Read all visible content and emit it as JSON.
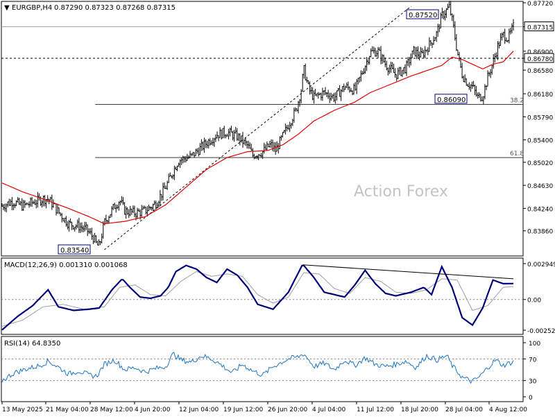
{
  "header": {
    "arrow": "▼",
    "symbol": "EURGBP,H4",
    "ohlc": "0.87290 0.87323 0.87268 0.87315"
  },
  "colors": {
    "candle": "#000000",
    "ma": "#e00000",
    "macd": "#00007a",
    "signal": "#a0a0a0",
    "rsi": "#1c75c8",
    "grid": "#808080",
    "watermark": "#c4c4c4"
  },
  "watermark": "Action Forex",
  "chart_data": [
    {
      "type": "candlestick",
      "title": "EURGBP,H4",
      "ylim": [
        0.8354,
        0.8772
      ],
      "y_ticks": [
        "0.87720",
        "0.87315",
        "0.86900",
        "0.86780",
        "0.86580",
        "0.86180",
        "0.85790",
        "0.85400",
        "0.85020",
        "0.84630",
        "0.84240",
        "0.83860"
      ],
      "current_price": "0.87315",
      "reference_level": "0.86780",
      "price_labels": [
        {
          "text": "0.87520",
          "x": "28 Jul 04:00",
          "y": 0.8752
        },
        {
          "text": "0.86090",
          "x": "28 Jul 04:00",
          "y": 0.8609
        },
        {
          "text": "0.83540",
          "x": "28 May 12:00",
          "y": 0.8354
        }
      ],
      "fib_levels": [
        {
          "label": "38.2",
          "value": 0.86
        },
        {
          "label": "61.8",
          "value": 0.851
        }
      ],
      "trendline": {
        "from": [
          0.2,
          0.8354
        ],
        "to": [
          0.8,
          0.8766
        ]
      },
      "close_path": [
        [
          0.0,
          0.8428
        ],
        [
          0.02,
          0.8436
        ],
        [
          0.04,
          0.8428
        ],
        [
          0.06,
          0.8434
        ],
        [
          0.08,
          0.844
        ],
        [
          0.09,
          0.844
        ],
        [
          0.1,
          0.843
        ],
        [
          0.11,
          0.8418
        ],
        [
          0.13,
          0.8398
        ],
        [
          0.15,
          0.8394
        ],
        [
          0.165,
          0.8388
        ],
        [
          0.178,
          0.8375
        ],
        [
          0.185,
          0.8362
        ],
        [
          0.19,
          0.836
        ],
        [
          0.2,
          0.84
        ],
        [
          0.22,
          0.8428
        ],
        [
          0.23,
          0.8438
        ],
        [
          0.24,
          0.842
        ],
        [
          0.26,
          0.8416
        ],
        [
          0.28,
          0.842
        ],
        [
          0.3,
          0.8432
        ],
        [
          0.32,
          0.846
        ],
        [
          0.335,
          0.8488
        ],
        [
          0.345,
          0.8505
        ],
        [
          0.355,
          0.8508
        ],
        [
          0.37,
          0.8512
        ],
        [
          0.4,
          0.8535
        ],
        [
          0.42,
          0.8549
        ],
        [
          0.44,
          0.8553
        ],
        [
          0.46,
          0.8546
        ],
        [
          0.48,
          0.853
        ],
        [
          0.49,
          0.8514
        ],
        [
          0.51,
          0.852
        ],
        [
          0.525,
          0.8532
        ],
        [
          0.535,
          0.8522
        ],
        [
          0.55,
          0.8548
        ],
        [
          0.565,
          0.8574
        ],
        [
          0.575,
          0.859
        ],
        [
          0.585,
          0.8625
        ],
        [
          0.59,
          0.866
        ],
        [
          0.6,
          0.8625
        ],
        [
          0.61,
          0.8612
        ],
        [
          0.63,
          0.862
        ],
        [
          0.65,
          0.8612
        ],
        [
          0.67,
          0.863
        ],
        [
          0.69,
          0.8624
        ],
        [
          0.7,
          0.8645
        ],
        [
          0.71,
          0.8666
        ],
        [
          0.72,
          0.8688
        ],
        [
          0.735,
          0.869
        ],
        [
          0.75,
          0.8668
        ],
        [
          0.77,
          0.865
        ],
        [
          0.79,
          0.8662
        ],
        [
          0.805,
          0.869
        ],
        [
          0.82,
          0.8682
        ],
        [
          0.835,
          0.87
        ],
        [
          0.85,
          0.872
        ],
        [
          0.86,
          0.875
        ],
        [
          0.875,
          0.8765
        ],
        [
          0.883,
          0.873
        ],
        [
          0.89,
          0.869
        ],
        [
          0.9,
          0.865
        ],
        [
          0.91,
          0.8636
        ],
        [
          0.92,
          0.863
        ],
        [
          0.93,
          0.8612
        ],
        [
          0.94,
          0.8614
        ],
        [
          0.95,
          0.8646
        ],
        [
          0.96,
          0.867
        ],
        [
          0.97,
          0.87
        ],
        [
          0.98,
          0.8718
        ],
        [
          0.99,
          0.8712
        ],
        [
          1.0,
          0.87315
        ]
      ],
      "ma_path": [
        [
          0.0,
          0.8467
        ],
        [
          0.04,
          0.8452
        ],
        [
          0.08,
          0.844
        ],
        [
          0.13,
          0.8424
        ],
        [
          0.17,
          0.841
        ],
        [
          0.2,
          0.8398
        ],
        [
          0.24,
          0.8402
        ],
        [
          0.28,
          0.841
        ],
        [
          0.32,
          0.843
        ],
        [
          0.36,
          0.846
        ],
        [
          0.4,
          0.849
        ],
        [
          0.44,
          0.851
        ],
        [
          0.48,
          0.852
        ],
        [
          0.52,
          0.8522
        ],
        [
          0.55,
          0.8532
        ],
        [
          0.58,
          0.855
        ],
        [
          0.61,
          0.8572
        ],
        [
          0.65,
          0.859
        ],
        [
          0.69,
          0.8604
        ],
        [
          0.72,
          0.862
        ],
        [
          0.76,
          0.8634
        ],
        [
          0.8,
          0.8648
        ],
        [
          0.84,
          0.866
        ],
        [
          0.86,
          0.8666
        ],
        [
          0.88,
          0.868
        ],
        [
          0.9,
          0.8676
        ],
        [
          0.92,
          0.8668
        ],
        [
          0.94,
          0.866
        ],
        [
          0.96,
          0.8668
        ],
        [
          0.98,
          0.8672
        ],
        [
          1.0,
          0.869
        ]
      ]
    },
    {
      "type": "line",
      "title": "MACD(12,26,9) 0.001310 0.001068",
      "ylim": [
        -0.002524,
        0.002949
      ],
      "y_ticks": [
        "0.002949",
        "0.00",
        "-0.002524"
      ],
      "trendline": {
        "from": [
          0.588,
          0.00285
        ],
        "to": [
          1.0,
          0.0017
        ]
      },
      "series": [
        {
          "name": "MACD",
          "values": [
            [
              0.0,
              -0.0025
            ],
            [
              0.03,
              -0.0014
            ],
            [
              0.06,
              -0.0005
            ],
            [
              0.09,
              0.0008
            ],
            [
              0.11,
              -0.0006
            ],
            [
              0.14,
              -0.0009
            ],
            [
              0.17,
              -0.0008
            ],
            [
              0.19,
              -0.0007
            ],
            [
              0.215,
              0.0008
            ],
            [
              0.235,
              0.0017
            ],
            [
              0.25,
              0.001
            ],
            [
              0.27,
              0.0002
            ],
            [
              0.29,
              0.0001
            ],
            [
              0.31,
              0.0003
            ],
            [
              0.325,
              0.001
            ],
            [
              0.34,
              0.0023
            ],
            [
              0.36,
              0.0028
            ],
            [
              0.38,
              0.0025
            ],
            [
              0.4,
              0.0018
            ],
            [
              0.42,
              0.0014
            ],
            [
              0.44,
              0.0025
            ],
            [
              0.46,
              0.002
            ],
            [
              0.48,
              0.001
            ],
            [
              0.5,
              -0.0004
            ],
            [
              0.53,
              -0.0008
            ],
            [
              0.56,
              0.0006
            ],
            [
              0.588,
              0.0029
            ],
            [
              0.61,
              0.0018
            ],
            [
              0.63,
              0.0006
            ],
            [
              0.65,
              0.0004
            ],
            [
              0.67,
              0.0002
            ],
            [
              0.69,
              0.0012
            ],
            [
              0.71,
              0.0024
            ],
            [
              0.73,
              0.0013
            ],
            [
              0.75,
              0.0005
            ],
            [
              0.77,
              0.0003
            ],
            [
              0.8,
              0.0006
            ],
            [
              0.825,
              0.001
            ],
            [
              0.84,
              0.0004
            ],
            [
              0.86,
              0.0027
            ],
            [
              0.88,
              0.001
            ],
            [
              0.9,
              -0.0015
            ],
            [
              0.92,
              -0.0021
            ],
            [
              0.94,
              -0.0007
            ],
            [
              0.96,
              0.0016
            ],
            [
              0.98,
              0.0013
            ],
            [
              1.0,
              0.00131
            ]
          ]
        },
        {
          "name": "Signal",
          "values": [
            [
              0.0,
              -0.0022
            ],
            [
              0.04,
              -0.0017
            ],
            [
              0.08,
              -0.0006
            ],
            [
              0.12,
              -0.0004
            ],
            [
              0.16,
              -0.0008
            ],
            [
              0.2,
              -0.0006
            ],
            [
              0.23,
              0.001
            ],
            [
              0.26,
              0.0012
            ],
            [
              0.29,
              0.0004
            ],
            [
              0.32,
              0.0003
            ],
            [
              0.35,
              0.0015
            ],
            [
              0.38,
              0.0023
            ],
            [
              0.41,
              0.0019
            ],
            [
              0.44,
              0.0021
            ],
            [
              0.47,
              0.0019
            ],
            [
              0.5,
              0.0004
            ],
            [
              0.53,
              -0.0003
            ],
            [
              0.56,
              0.0002
            ],
            [
              0.59,
              0.0022
            ],
            [
              0.62,
              0.0021
            ],
            [
              0.65,
              0.0009
            ],
            [
              0.68,
              0.0005
            ],
            [
              0.71,
              0.0018
            ],
            [
              0.74,
              0.0015
            ],
            [
              0.77,
              0.0006
            ],
            [
              0.8,
              0.0005
            ],
            [
              0.83,
              0.0008
            ],
            [
              0.86,
              0.0017
            ],
            [
              0.89,
              0.0016
            ],
            [
              0.92,
              -0.0009
            ],
            [
              0.95,
              -0.0005
            ],
            [
              0.98,
              0.001
            ],
            [
              1.0,
              0.001068
            ]
          ]
        }
      ]
    },
    {
      "type": "line",
      "title": "RSI(14) 64.8350",
      "ylim": [
        0,
        100
      ],
      "y_ticks": [
        "100",
        "70",
        "30",
        "0"
      ],
      "reference_lines": [
        70,
        30
      ],
      "series": [
        {
          "name": "RSI",
          "values": [
            [
              0.0,
              30
            ],
            [
              0.025,
              45
            ],
            [
              0.05,
              52
            ],
            [
              0.075,
              58
            ],
            [
              0.09,
              66
            ],
            [
              0.11,
              55
            ],
            [
              0.13,
              42
            ],
            [
              0.15,
              48
            ],
            [
              0.17,
              40
            ],
            [
              0.185,
              38
            ],
            [
              0.2,
              60
            ],
            [
              0.22,
              68
            ],
            [
              0.24,
              50
            ],
            [
              0.26,
              54
            ],
            [
              0.28,
              46
            ],
            [
              0.3,
              52
            ],
            [
              0.32,
              56
            ],
            [
              0.335,
              80
            ],
            [
              0.35,
              68
            ],
            [
              0.37,
              64
            ],
            [
              0.39,
              76
            ],
            [
              0.41,
              70
            ],
            [
              0.43,
              58
            ],
            [
              0.45,
              44
            ],
            [
              0.47,
              60
            ],
            [
              0.49,
              48
            ],
            [
              0.51,
              40
            ],
            [
              0.53,
              56
            ],
            [
              0.56,
              70
            ],
            [
              0.58,
              74
            ],
            [
              0.59,
              80
            ],
            [
              0.61,
              56
            ],
            [
              0.63,
              62
            ],
            [
              0.65,
              50
            ],
            [
              0.67,
              68
            ],
            [
              0.69,
              58
            ],
            [
              0.71,
              72
            ],
            [
              0.73,
              60
            ],
            [
              0.75,
              56
            ],
            [
              0.77,
              60
            ],
            [
              0.79,
              66
            ],
            [
              0.81,
              54
            ],
            [
              0.83,
              76
            ],
            [
              0.85,
              68
            ],
            [
              0.87,
              76
            ],
            [
              0.88,
              58
            ],
            [
              0.9,
              36
            ],
            [
              0.92,
              28
            ],
            [
              0.935,
              38
            ],
            [
              0.95,
              54
            ],
            [
              0.965,
              68
            ],
            [
              0.98,
              58
            ],
            [
              1.0,
              64.835
            ]
          ]
        }
      ]
    }
  ],
  "x_axis": {
    "labels": [
      "13 May 2025",
      "21 May 04:00",
      "28 May 12:00",
      "4 Jun 20:00",
      "12 Jun 04:00",
      "19 Jun 12:00",
      "26 Jun 20:00",
      "4 Jul 04:00",
      "11 Jul 12:00",
      "18 Jul 20:00",
      "28 Jul 04:00",
      "4 Aug 12:00"
    ]
  }
}
